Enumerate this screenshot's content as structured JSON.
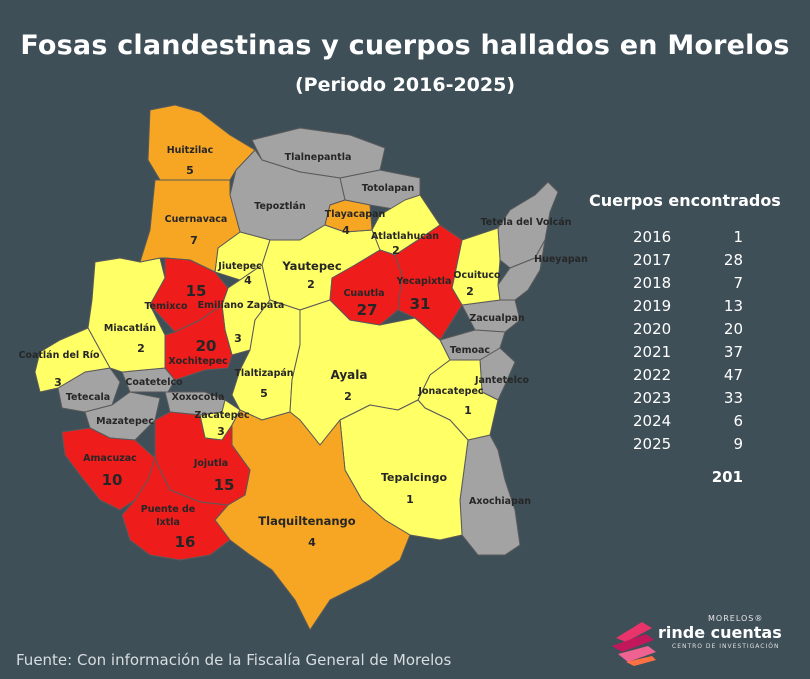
{
  "title": "Fosas clandestinas y cuerpos hallados en Morelos",
  "subtitle": "(Periodo 2016-2025)",
  "table": {
    "heading": "Cuerpos encontrados",
    "rows": [
      {
        "year": "2016",
        "value": "1"
      },
      {
        "year": "2017",
        "value": "28"
      },
      {
        "year": "2018",
        "value": "7"
      },
      {
        "year": "2019",
        "value": "13"
      },
      {
        "year": "2020",
        "value": "20"
      },
      {
        "year": "2021",
        "value": "37"
      },
      {
        "year": "2022",
        "value": "47"
      },
      {
        "year": "2023",
        "value": "33"
      },
      {
        "year": "2024",
        "value": "6"
      },
      {
        "year": "2025",
        "value": "9"
      }
    ],
    "total": "201"
  },
  "colors": {
    "background": "#3e4f58",
    "none": "#a3a3a3",
    "low": "#ffff66",
    "medium": "#f6a623",
    "high": "#ef1c1c"
  },
  "municipalities": {
    "huitzilac": {
      "name": "Huitzilac",
      "count": "5"
    },
    "tlalnepantla": {
      "name": "Tlalnepantla"
    },
    "totolapan": {
      "name": "Totolapan"
    },
    "tepoztlan": {
      "name": "Tepoztlán"
    },
    "cuernavaca": {
      "name": "Cuernavaca",
      "count": "7"
    },
    "tlayacapan": {
      "name": "Tlayacapan",
      "count": "4"
    },
    "atlatlahucan": {
      "name": "Atlatlahucan",
      "count": "2"
    },
    "tetela": {
      "name": "Tetela del Volcán"
    },
    "hueyapan": {
      "name": "Hueyapan"
    },
    "jiutepec": {
      "name": "Jiutepec",
      "count": "4"
    },
    "yautepec": {
      "name": "Yautepec",
      "count": "2"
    },
    "cuautla": {
      "name": "Cuautla",
      "count": "27"
    },
    "yecapixtla": {
      "name": "Yecapixtla",
      "count": "31"
    },
    "ocuituco": {
      "name": "Ocuituco",
      "count": "2"
    },
    "temixco": {
      "name": "Temixco",
      "count": "15"
    },
    "emiliano": {
      "name": "Emiliano Zapata",
      "count": "3"
    },
    "zacualpan": {
      "name": "Zacualpan"
    },
    "miacatlan": {
      "name": "Miacatlán",
      "count": "2"
    },
    "xochitepec": {
      "name": "Xochitepec",
      "count": "20"
    },
    "temoac": {
      "name": "Temoac"
    },
    "coatlan": {
      "name": "Coatlán del Río",
      "count": "3"
    },
    "coatetelco": {
      "name": "Coatetelco"
    },
    "ayala": {
      "name": "Ayala",
      "count": "2"
    },
    "jantetelco": {
      "name": "Jantetelco"
    },
    "tlaltizapan": {
      "name": "Tlaltizapán",
      "count": "5"
    },
    "tetecala": {
      "name": "Tetecala"
    },
    "xoxocotla": {
      "name": "Xoxocotla"
    },
    "jonacatepec": {
      "name": "Jonacatepec",
      "count": "1"
    },
    "mazatepec": {
      "name": "Mazatepec"
    },
    "zacatepec": {
      "name": "Zacatepec",
      "count": "3"
    },
    "amacuzac": {
      "name": "Amacuzac",
      "count": "10"
    },
    "jojutla": {
      "name": "Jojutla",
      "count": "15"
    },
    "tepalcingo": {
      "name": "Tepalcingo",
      "count": "1"
    },
    "axochiapan": {
      "name": "Axochiapan"
    },
    "puente": {
      "name_line1": "Puente de",
      "name_line2": "Ixtla",
      "count": "16"
    },
    "tlaquiltenango": {
      "name": "Tlaquiltenango",
      "count": "4"
    }
  },
  "source": "Fuente: Con información de la Fiscalía General de Morelos",
  "logo": {
    "top": "MORELOS®",
    "main": "rinde cuentas",
    "bottom": "CENTRO DE INVESTIGACIÓN"
  }
}
